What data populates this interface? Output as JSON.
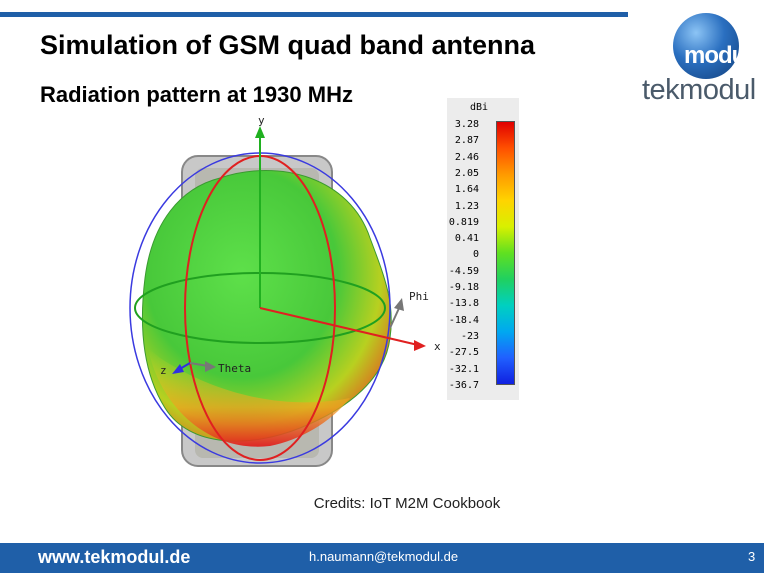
{
  "slide": {
    "title": "Simulation of GSM quad band antenna",
    "subtitle": "Radiation pattern at 1930 MHz",
    "credits": "Credits: IoT M2M Cookbook",
    "page_number": "3"
  },
  "logo": {
    "ball_text": "modul",
    "wordmark": "tekmodul"
  },
  "footer": {
    "url": "www.tekmodul.de",
    "email": "h.naumann@tekmodul.de"
  },
  "plot": {
    "axes": {
      "y": "y",
      "x": "x",
      "z": "z",
      "phi": "Phi",
      "theta": "Theta"
    }
  },
  "legend": {
    "unit": "dBi",
    "ticks": [
      "3.28",
      "2.87",
      "2.46",
      "2.05",
      "1.64",
      "1.23",
      "0.819",
      "0.41",
      "0",
      "-4.59",
      "-9.18",
      "-13.8",
      "-18.4",
      "-23",
      "-27.5",
      "-32.1",
      "-36.7"
    ]
  },
  "colors": {
    "brand_blue": "#1f5fa8",
    "pattern_green": "#5fd438",
    "hot_red": "#e02020"
  }
}
